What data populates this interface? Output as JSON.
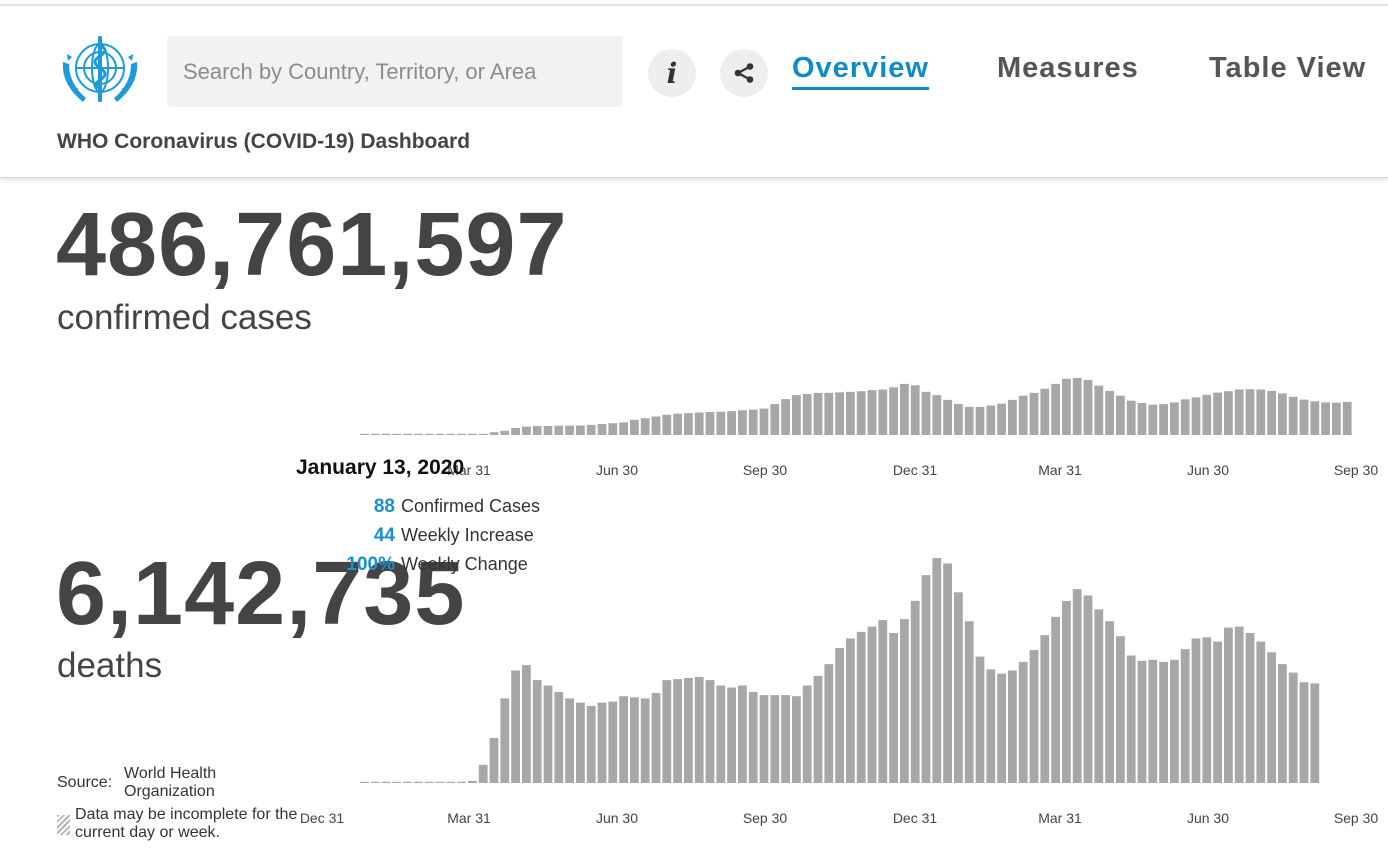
{
  "header": {
    "search_placeholder": "Search by Country, Territory, or Area",
    "tabs": [
      {
        "label": "Overview",
        "active": true
      },
      {
        "label": "Measures",
        "active": false
      },
      {
        "label": "Table View",
        "active": false
      }
    ],
    "dashboard_title": "WHO Coronavirus (COVID-19) Dashboard",
    "icons": {
      "logo": "who-emblem-icon",
      "info": "info-icon",
      "share": "share-icon"
    },
    "accent_color": "#0f8cc8"
  },
  "summary": {
    "cases_total": "486,761,597",
    "cases_label": "confirmed cases",
    "deaths_total": "6,142,735",
    "deaths_label": "deaths"
  },
  "tooltip": {
    "date": "January 13, 2020",
    "rows": [
      {
        "value": "88",
        "label": "Confirmed Cases"
      },
      {
        "value": "44",
        "label": "Weekly Increase"
      },
      {
        "value": "100%",
        "label": "Weekly Change"
      }
    ]
  },
  "footer": {
    "source_label": "Source:",
    "source_value": "World Health Organization",
    "note": "Data may be incomplete for the current day or week."
  },
  "chart_data": [
    {
      "type": "bar",
      "title": "",
      "series_name": "Weekly confirmed cases",
      "x_tick_labels": [
        "Dec 31",
        "Mar 31",
        "Jun 30",
        "Sep 30",
        "Dec 31",
        "Mar 31",
        "Jun 30",
        "Sep 30"
      ],
      "values": [
        0,
        0,
        0,
        0,
        0,
        0,
        0,
        0,
        0,
        0,
        0,
        0,
        1,
        1.5,
        2.5,
        3,
        3.2,
        3.2,
        3.3,
        3.3,
        3.4,
        3.6,
        3.9,
        4.2,
        4.5,
        5.4,
        6,
        6.6,
        7.2,
        7.6,
        7.8,
        8,
        8.2,
        8.3,
        8.5,
        8.8,
        9,
        9.4,
        11,
        12.8,
        14.2,
        14.6,
        15,
        15,
        15.2,
        15.4,
        15.6,
        16,
        16.2,
        17,
        18.2,
        17.7,
        15.4,
        14.2,
        12.5,
        11,
        10,
        10,
        10.5,
        11.2,
        12.5,
        14,
        15,
        16.5,
        18.2,
        20,
        20.3,
        19.6,
        17.6,
        15.7,
        14,
        12.2,
        11.4,
        10.8,
        11,
        11.6,
        12.7,
        13.4,
        14.3,
        15.1,
        15.6,
        16.2,
        16.3,
        16.2,
        15.7,
        14.8,
        13.6,
        12.6,
        12,
        11.6,
        11.5,
        11.8
      ]
    },
    {
      "type": "bar",
      "title": "",
      "series_name": "Weekly deaths",
      "x_tick_labels": [
        "Dec 31",
        "Mar 31",
        "Jun 30",
        "Sep 30",
        "Dec 31",
        "Mar 31",
        "Jun 30",
        "Sep 30"
      ],
      "values": [
        0,
        0,
        0,
        0,
        0,
        0,
        0,
        0,
        0,
        0,
        2,
        17,
        42,
        79,
        105,
        110,
        96,
        91,
        85,
        79,
        75,
        72,
        75,
        76,
        81,
        80,
        79,
        84,
        96,
        97,
        98,
        99,
        96,
        91,
        89,
        91,
        85,
        82,
        82,
        82,
        81,
        91,
        100,
        111,
        126,
        135,
        141,
        146,
        152,
        140,
        153,
        170,
        194,
        210,
        205,
        178,
        151,
        118,
        106,
        102,
        105,
        113,
        124,
        138,
        155,
        170,
        181,
        175,
        162,
        151,
        137,
        119,
        114,
        115,
        113,
        115,
        125,
        135,
        136,
        132,
        145,
        146,
        140,
        132,
        122,
        111,
        103,
        94,
        93
      ]
    }
  ]
}
